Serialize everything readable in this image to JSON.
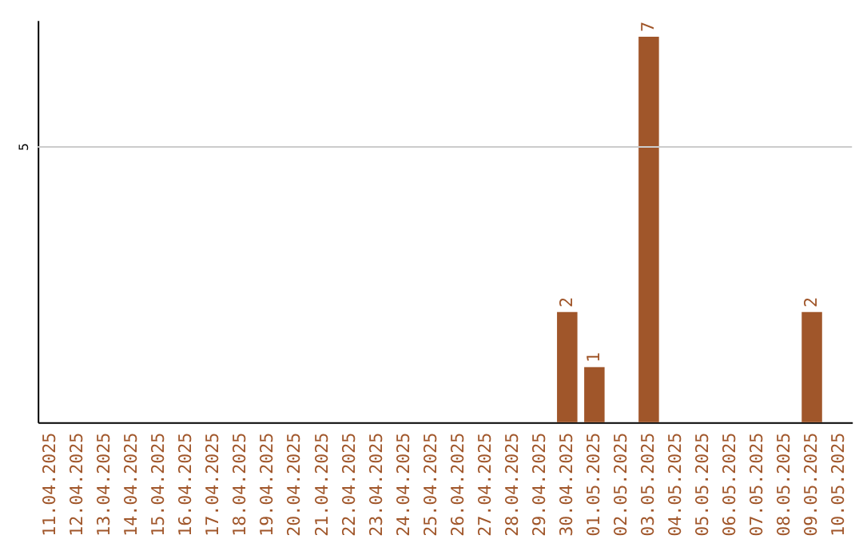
{
  "chart_data": {
    "type": "bar",
    "categories": [
      "11.04.2025",
      "12.04.2025",
      "13.04.2025",
      "14.04.2025",
      "15.04.2025",
      "16.04.2025",
      "17.04.2025",
      "18.04.2025",
      "19.04.2025",
      "20.04.2025",
      "21.04.2025",
      "22.04.2025",
      "23.04.2025",
      "24.04.2025",
      "25.04.2025",
      "26.04.2025",
      "27.04.2025",
      "28.04.2025",
      "29.04.2025",
      "30.04.2025",
      "01.05.2025",
      "02.05.2025",
      "03.05.2025",
      "04.05.2025",
      "05.05.2025",
      "06.05.2025",
      "07.05.2025",
      "08.05.2025",
      "09.05.2025",
      "10.05.2025"
    ],
    "values": [
      null,
      null,
      null,
      null,
      null,
      null,
      null,
      null,
      null,
      null,
      null,
      null,
      null,
      null,
      null,
      null,
      null,
      null,
      null,
      2,
      1,
      null,
      7,
      null,
      null,
      null,
      null,
      null,
      2,
      null
    ],
    "ylim": [
      0,
      7.3
    ],
    "data_labels": true,
    "color": "#a0562a",
    "ref_lines": [
      {
        "axis": "y",
        "value": 5,
        "label": "5",
        "color": "#cccccc"
      }
    ]
  }
}
